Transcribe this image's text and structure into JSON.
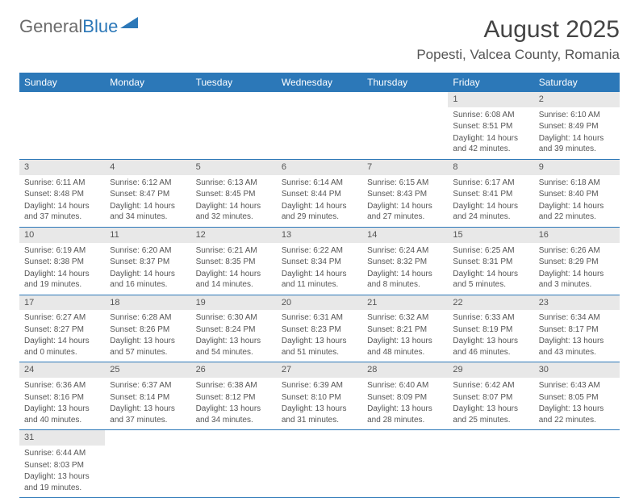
{
  "logo": {
    "part1": "General",
    "part2": "Blue"
  },
  "title": "August 2025",
  "location": "Popesti, Valcea County, Romania",
  "colors": {
    "header_bg": "#2c78b8",
    "header_text": "#ffffff",
    "daynum_bg": "#e8e8e8",
    "border": "#2c78b8",
    "text": "#555555"
  },
  "weekdays": [
    "Sunday",
    "Monday",
    "Tuesday",
    "Wednesday",
    "Thursday",
    "Friday",
    "Saturday"
  ],
  "weeks": [
    [
      null,
      null,
      null,
      null,
      null,
      {
        "n": "1",
        "sr": "Sunrise: 6:08 AM",
        "ss": "Sunset: 8:51 PM",
        "dl": "Daylight: 14 hours and 42 minutes."
      },
      {
        "n": "2",
        "sr": "Sunrise: 6:10 AM",
        "ss": "Sunset: 8:49 PM",
        "dl": "Daylight: 14 hours and 39 minutes."
      }
    ],
    [
      {
        "n": "3",
        "sr": "Sunrise: 6:11 AM",
        "ss": "Sunset: 8:48 PM",
        "dl": "Daylight: 14 hours and 37 minutes."
      },
      {
        "n": "4",
        "sr": "Sunrise: 6:12 AM",
        "ss": "Sunset: 8:47 PM",
        "dl": "Daylight: 14 hours and 34 minutes."
      },
      {
        "n": "5",
        "sr": "Sunrise: 6:13 AM",
        "ss": "Sunset: 8:45 PM",
        "dl": "Daylight: 14 hours and 32 minutes."
      },
      {
        "n": "6",
        "sr": "Sunrise: 6:14 AM",
        "ss": "Sunset: 8:44 PM",
        "dl": "Daylight: 14 hours and 29 minutes."
      },
      {
        "n": "7",
        "sr": "Sunrise: 6:15 AM",
        "ss": "Sunset: 8:43 PM",
        "dl": "Daylight: 14 hours and 27 minutes."
      },
      {
        "n": "8",
        "sr": "Sunrise: 6:17 AM",
        "ss": "Sunset: 8:41 PM",
        "dl": "Daylight: 14 hours and 24 minutes."
      },
      {
        "n": "9",
        "sr": "Sunrise: 6:18 AM",
        "ss": "Sunset: 8:40 PM",
        "dl": "Daylight: 14 hours and 22 minutes."
      }
    ],
    [
      {
        "n": "10",
        "sr": "Sunrise: 6:19 AM",
        "ss": "Sunset: 8:38 PM",
        "dl": "Daylight: 14 hours and 19 minutes."
      },
      {
        "n": "11",
        "sr": "Sunrise: 6:20 AM",
        "ss": "Sunset: 8:37 PM",
        "dl": "Daylight: 14 hours and 16 minutes."
      },
      {
        "n": "12",
        "sr": "Sunrise: 6:21 AM",
        "ss": "Sunset: 8:35 PM",
        "dl": "Daylight: 14 hours and 14 minutes."
      },
      {
        "n": "13",
        "sr": "Sunrise: 6:22 AM",
        "ss": "Sunset: 8:34 PM",
        "dl": "Daylight: 14 hours and 11 minutes."
      },
      {
        "n": "14",
        "sr": "Sunrise: 6:24 AM",
        "ss": "Sunset: 8:32 PM",
        "dl": "Daylight: 14 hours and 8 minutes."
      },
      {
        "n": "15",
        "sr": "Sunrise: 6:25 AM",
        "ss": "Sunset: 8:31 PM",
        "dl": "Daylight: 14 hours and 5 minutes."
      },
      {
        "n": "16",
        "sr": "Sunrise: 6:26 AM",
        "ss": "Sunset: 8:29 PM",
        "dl": "Daylight: 14 hours and 3 minutes."
      }
    ],
    [
      {
        "n": "17",
        "sr": "Sunrise: 6:27 AM",
        "ss": "Sunset: 8:27 PM",
        "dl": "Daylight: 14 hours and 0 minutes."
      },
      {
        "n": "18",
        "sr": "Sunrise: 6:28 AM",
        "ss": "Sunset: 8:26 PM",
        "dl": "Daylight: 13 hours and 57 minutes."
      },
      {
        "n": "19",
        "sr": "Sunrise: 6:30 AM",
        "ss": "Sunset: 8:24 PM",
        "dl": "Daylight: 13 hours and 54 minutes."
      },
      {
        "n": "20",
        "sr": "Sunrise: 6:31 AM",
        "ss": "Sunset: 8:23 PM",
        "dl": "Daylight: 13 hours and 51 minutes."
      },
      {
        "n": "21",
        "sr": "Sunrise: 6:32 AM",
        "ss": "Sunset: 8:21 PM",
        "dl": "Daylight: 13 hours and 48 minutes."
      },
      {
        "n": "22",
        "sr": "Sunrise: 6:33 AM",
        "ss": "Sunset: 8:19 PM",
        "dl": "Daylight: 13 hours and 46 minutes."
      },
      {
        "n": "23",
        "sr": "Sunrise: 6:34 AM",
        "ss": "Sunset: 8:17 PM",
        "dl": "Daylight: 13 hours and 43 minutes."
      }
    ],
    [
      {
        "n": "24",
        "sr": "Sunrise: 6:36 AM",
        "ss": "Sunset: 8:16 PM",
        "dl": "Daylight: 13 hours and 40 minutes."
      },
      {
        "n": "25",
        "sr": "Sunrise: 6:37 AM",
        "ss": "Sunset: 8:14 PM",
        "dl": "Daylight: 13 hours and 37 minutes."
      },
      {
        "n": "26",
        "sr": "Sunrise: 6:38 AM",
        "ss": "Sunset: 8:12 PM",
        "dl": "Daylight: 13 hours and 34 minutes."
      },
      {
        "n": "27",
        "sr": "Sunrise: 6:39 AM",
        "ss": "Sunset: 8:10 PM",
        "dl": "Daylight: 13 hours and 31 minutes."
      },
      {
        "n": "28",
        "sr": "Sunrise: 6:40 AM",
        "ss": "Sunset: 8:09 PM",
        "dl": "Daylight: 13 hours and 28 minutes."
      },
      {
        "n": "29",
        "sr": "Sunrise: 6:42 AM",
        "ss": "Sunset: 8:07 PM",
        "dl": "Daylight: 13 hours and 25 minutes."
      },
      {
        "n": "30",
        "sr": "Sunrise: 6:43 AM",
        "ss": "Sunset: 8:05 PM",
        "dl": "Daylight: 13 hours and 22 minutes."
      }
    ],
    [
      {
        "n": "31",
        "sr": "Sunrise: 6:44 AM",
        "ss": "Sunset: 8:03 PM",
        "dl": "Daylight: 13 hours and 19 minutes."
      },
      null,
      null,
      null,
      null,
      null,
      null
    ]
  ]
}
